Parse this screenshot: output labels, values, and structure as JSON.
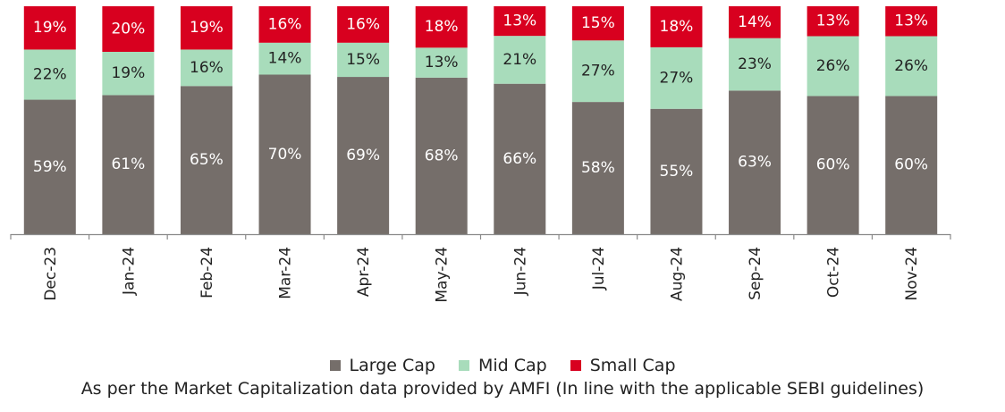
{
  "chart_data": {
    "type": "bar",
    "stacked": true,
    "normalized_percent": true,
    "categories": [
      "Dec-23",
      "Jan-24",
      "Feb-24",
      "Mar-24",
      "Apr-24",
      "May-24",
      "Jun-24",
      "Jul-24",
      "Aug-24",
      "Sep-24",
      "Oct-24",
      "Nov-24"
    ],
    "series": [
      {
        "name": "Large Cap",
        "color": "#756e6a",
        "label_color": "#ffffff",
        "values": [
          59,
          61,
          65,
          70,
          69,
          68,
          66,
          58,
          55,
          63,
          60,
          60
        ],
        "labels": [
          "59%",
          "61%",
          "65%",
          "70%",
          "69%",
          "68%",
          "66%",
          "58%",
          "55%",
          "63%",
          "60%",
          "60%"
        ]
      },
      {
        "name": "Mid Cap",
        "color": "#a8dcbb",
        "label_color": "#222222",
        "values": [
          22,
          19,
          16,
          14,
          15,
          13,
          21,
          27,
          27,
          23,
          26,
          26
        ],
        "labels": [
          "22%",
          "19%",
          "16%",
          "14%",
          "15%",
          "13%",
          "21%",
          "27%",
          "27%",
          "23%",
          "26%",
          "26%"
        ]
      },
      {
        "name": "Small Cap",
        "color": "#d8001f",
        "label_color": "#ffffff",
        "values": [
          19,
          20,
          19,
          16,
          16,
          18,
          13,
          15,
          18,
          14,
          13,
          13
        ],
        "labels": [
          "19%",
          "20%",
          "19%",
          "16%",
          "16%",
          "18%",
          "13%",
          "15%",
          "18%",
          "14%",
          "13%",
          "13%"
        ]
      }
    ],
    "title": "",
    "xlabel": "",
    "ylabel": "",
    "ylim": [
      0,
      100
    ],
    "grid": false,
    "legend_position": "bottom"
  },
  "legend": {
    "items": [
      {
        "label": "Large Cap",
        "color": "#756e6a"
      },
      {
        "label": "Mid Cap",
        "color": "#a8dcbb"
      },
      {
        "label": "Small Cap",
        "color": "#d8001f"
      }
    ]
  },
  "footnote": "As per the Market Capitalization data provided by AMFI (In line with the applicable SEBI guidelines)"
}
